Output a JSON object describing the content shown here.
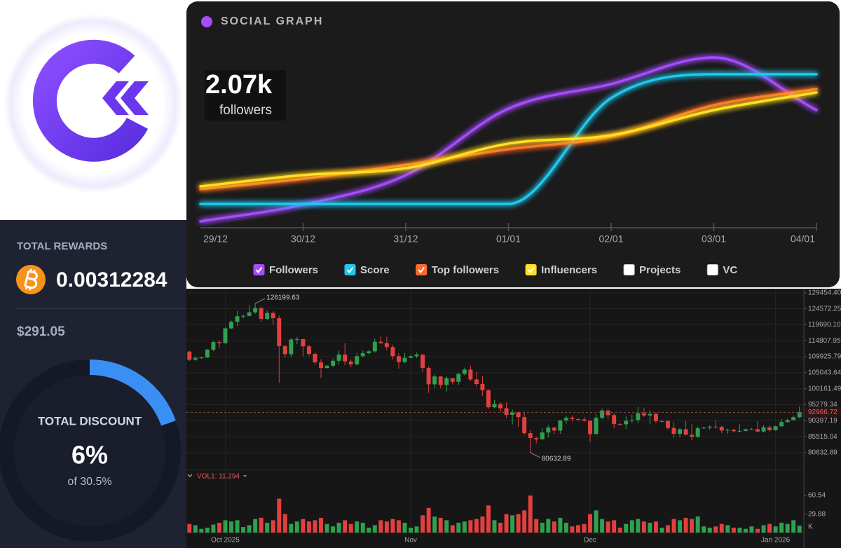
{
  "chart_data": [
    {
      "type": "line",
      "title": "SOCIAL GRAPH",
      "headline": "2.07k",
      "headline_caption": "followers",
      "categories": [
        "29/12",
        "30/12",
        "31/12",
        "01/01",
        "02/01",
        "03/01",
        "04/01"
      ],
      "ylim": [
        0,
        100
      ],
      "series": [
        {
          "name": "Followers",
          "color": "#a64cff",
          "values": [
            5.4,
            14.6,
            30.8,
            67.3,
            80.8,
            95.4,
            66.5
          ]
        },
        {
          "name": "Score",
          "color": "#22c7ee",
          "values": [
            15,
            15,
            15,
            15,
            73.1,
            86.2,
            86.2
          ]
        },
        {
          "name": "Top followers",
          "color": "#ff6a2a",
          "values": [
            23.1,
            28.8,
            36.5,
            45,
            51.9,
            69.2,
            78.1
          ]
        },
        {
          "name": "Influencers",
          "color": "#ffe021",
          "values": [
            24.6,
            30.8,
            34.6,
            48.1,
            52.7,
            66.5,
            76.2
          ]
        }
      ],
      "hidden_series": [
        {
          "name": "Projects"
        },
        {
          "name": "VC"
        }
      ]
    },
    {
      "type": "candlestick",
      "categories": [
        null,
        null,
        null,
        null,
        null,
        null,
        "Oct 2025",
        null,
        null,
        null,
        null,
        null,
        null,
        null,
        null,
        null,
        null,
        null,
        null,
        null,
        null,
        null,
        null,
        null,
        null,
        null,
        null,
        null,
        null,
        null,
        null,
        null,
        null,
        null,
        null,
        null,
        null,
        "Nov",
        null,
        null,
        null,
        null,
        null,
        null,
        null,
        null,
        null,
        null,
        null,
        null,
        null,
        null,
        null,
        null,
        null,
        null,
        null,
        null,
        null,
        null,
        null,
        null,
        null,
        null,
        null,
        null,
        null,
        "Dec",
        null,
        null,
        null,
        null,
        null,
        null,
        null,
        null,
        null,
        null,
        null,
        null,
        null,
        null,
        null,
        null,
        null,
        null,
        null,
        null,
        null,
        null,
        null,
        null,
        null,
        null,
        null,
        null,
        null,
        null,
        "Jan 2026",
        null,
        null,
        null,
        null
      ],
      "open": [
        111500,
        109000,
        109600,
        109700,
        112100,
        114400,
        114100,
        118600,
        120600,
        122300,
        122400,
        123500,
        124800,
        121500,
        123300,
        121700,
        113200,
        110700,
        115200,
        115300,
        113100,
        110800,
        108200,
        106500,
        107200,
        108700,
        110600,
        108500,
        107600,
        110100,
        111000,
        111600,
        114500,
        114100,
        112900,
        110100,
        108300,
        109600,
        110100,
        110600,
        106500,
        101500,
        103900,
        101300,
        103400,
        102300,
        104700,
        106000,
        103000,
        101600,
        99700,
        94500,
        95500,
        94200,
        92200,
        92900,
        91500,
        86600,
        85100,
        84700,
        86800,
        88300,
        87400,
        90500,
        91300,
        90900,
        90800,
        90400,
        86300,
        91300,
        93500,
        92100,
        89400,
        89300,
        90400,
        90600,
        92700,
        92000,
        92500,
        90300,
        90300,
        88200,
        86400,
        87800,
        86100,
        85500,
        88100,
        88300,
        88600,
        88500,
        87400,
        87600,
        87200,
        87300,
        87800,
        87800,
        87100,
        88400,
        87500,
        88700,
        90000,
        90600,
        91500
      ],
      "high": [
        111800,
        110000,
        109900,
        112400,
        114800,
        114900,
        118900,
        121000,
        123900,
        122900,
        125700,
        126199.63,
        125200,
        124100,
        123800,
        122500,
        113500,
        115700,
        116000,
        115400,
        113500,
        111300,
        109200,
        107500,
        109400,
        111700,
        114000,
        109100,
        111000,
        111900,
        112000,
        115500,
        116100,
        116000,
        113600,
        111000,
        111100,
        110500,
        111200,
        110800,
        107000,
        104500,
        104000,
        103900,
        103400,
        105000,
        106600,
        107200,
        105300,
        104000,
        100000,
        96800,
        96000,
        96000,
        93800,
        93200,
        93000,
        87500,
        85500,
        88000,
        89000,
        88500,
        90600,
        91900,
        92000,
        91200,
        91500,
        90400,
        92300,
        94100,
        94000,
        92700,
        89800,
        91800,
        92300,
        94600,
        94400,
        93600,
        92800,
        90600,
        90600,
        90000,
        88200,
        90400,
        89400,
        88600,
        88600,
        89000,
        90500,
        88900,
        88000,
        88000,
        89300,
        88000,
        88100,
        90200,
        89000,
        89000,
        88900,
        90900,
        91000,
        92000,
        94700
      ],
      "low": [
        108600,
        108700,
        109300,
        109500,
        111600,
        112700,
        113900,
        118300,
        119300,
        121600,
        122200,
        123000,
        120600,
        121100,
        119700,
        102000,
        109600,
        109800,
        113800,
        110000,
        110100,
        107600,
        103500,
        106300,
        106700,
        107500,
        107400,
        106800,
        107300,
        109700,
        110600,
        111200,
        113800,
        111900,
        109200,
        106300,
        108000,
        109400,
        109500,
        105300,
        98900,
        100300,
        100300,
        99300,
        101500,
        101400,
        104300,
        102500,
        100800,
        98000,
        94000,
        94200,
        93000,
        91300,
        89300,
        88600,
        86100,
        80632.89,
        83500,
        84600,
        85300,
        86200,
        86400,
        89500,
        90200,
        90400,
        90100,
        83900,
        86200,
        90900,
        91000,
        88100,
        88900,
        87800,
        89700,
        89700,
        91600,
        89300,
        89600,
        89800,
        87600,
        85200,
        85300,
        85900,
        84500,
        85200,
        87900,
        87600,
        88000,
        86600,
        86400,
        86800,
        86900,
        87100,
        87500,
        86900,
        86800,
        87100,
        87400,
        88600,
        89800,
        90500,
        91000
      ],
      "close": [
        109000,
        109600,
        109700,
        112100,
        114400,
        114100,
        118600,
        120600,
        122300,
        122400,
        123500,
        124800,
        121500,
        123300,
        121700,
        113200,
        110700,
        115200,
        115300,
        113100,
        110800,
        108200,
        106500,
        107200,
        108700,
        110600,
        108500,
        107600,
        110100,
        111000,
        111600,
        114500,
        114100,
        112900,
        110100,
        108300,
        109600,
        110100,
        110600,
        106500,
        101500,
        103900,
        101300,
        103400,
        102300,
        104700,
        106000,
        103000,
        101600,
        99700,
        94500,
        95500,
        94200,
        92200,
        92900,
        91500,
        86600,
        85100,
        84700,
        86800,
        88300,
        87400,
        90500,
        91300,
        90900,
        90800,
        90400,
        86300,
        91300,
        93500,
        92100,
        89400,
        89300,
        90400,
        90600,
        92700,
        92000,
        92500,
        90300,
        90300,
        88200,
        86400,
        87800,
        86100,
        85500,
        88100,
        88300,
        88600,
        88500,
        87400,
        87600,
        87200,
        87300,
        87800,
        87800,
        87100,
        88400,
        87500,
        88700,
        90000,
        90600,
        91500,
        92966.72
      ],
      "ylim": [
        75500,
        130700
      ],
      "yticks": [
        {
          "value": 129454.4,
          "label": "129454.40"
        },
        124572.25,
        {
          "value": 119690.1,
          "label": "119690.10"
        },
        114807.95,
        109925.79,
        105043.64,
        100161.49,
        95279.34,
        90397.19,
        85515.04,
        80632.89
      ],
      "up_color": "#2ea04f",
      "down_color": "#e2403f",
      "grid": true
    },
    {
      "type": "bar",
      "title": "VOL1: 11.294",
      "values": [
        14,
        12,
        6,
        8,
        13,
        16,
        20,
        18,
        20,
        9,
        12,
        22,
        24,
        16,
        20,
        55,
        30,
        14,
        18,
        22,
        18,
        20,
        24,
        14,
        10,
        16,
        20,
        14,
        18,
        16,
        8,
        12,
        20,
        18,
        22,
        20,
        16,
        8,
        10,
        28,
        40,
        26,
        24,
        20,
        12,
        16,
        18,
        20,
        22,
        26,
        44,
        20,
        16,
        30,
        28,
        30,
        36,
        60,
        22,
        16,
        22,
        18,
        24,
        16,
        10,
        12,
        14,
        30,
        36,
        22,
        18,
        20,
        8,
        14,
        20,
        22,
        18,
        16,
        18,
        8,
        12,
        22,
        20,
        24,
        22,
        26,
        10,
        8,
        10,
        14,
        12,
        8,
        8,
        6,
        10,
        6,
        12,
        14,
        10,
        16,
        14,
        20,
        11.294
      ],
      "ylim": [
        0,
        100
      ],
      "yticks": [
        60.54,
        29.88
      ],
      "unit": "K"
    }
  ],
  "rewards": {
    "title": "TOTAL REWARDS",
    "amount": "0.00312284",
    "usd": "$291.05",
    "discount_title": "TOTAL DISCOUNT",
    "discount": {
      "value": 6,
      "label": "6%"
    },
    "discount_max": {
      "value": 30.5,
      "label": "of 30.5%"
    }
  }
}
